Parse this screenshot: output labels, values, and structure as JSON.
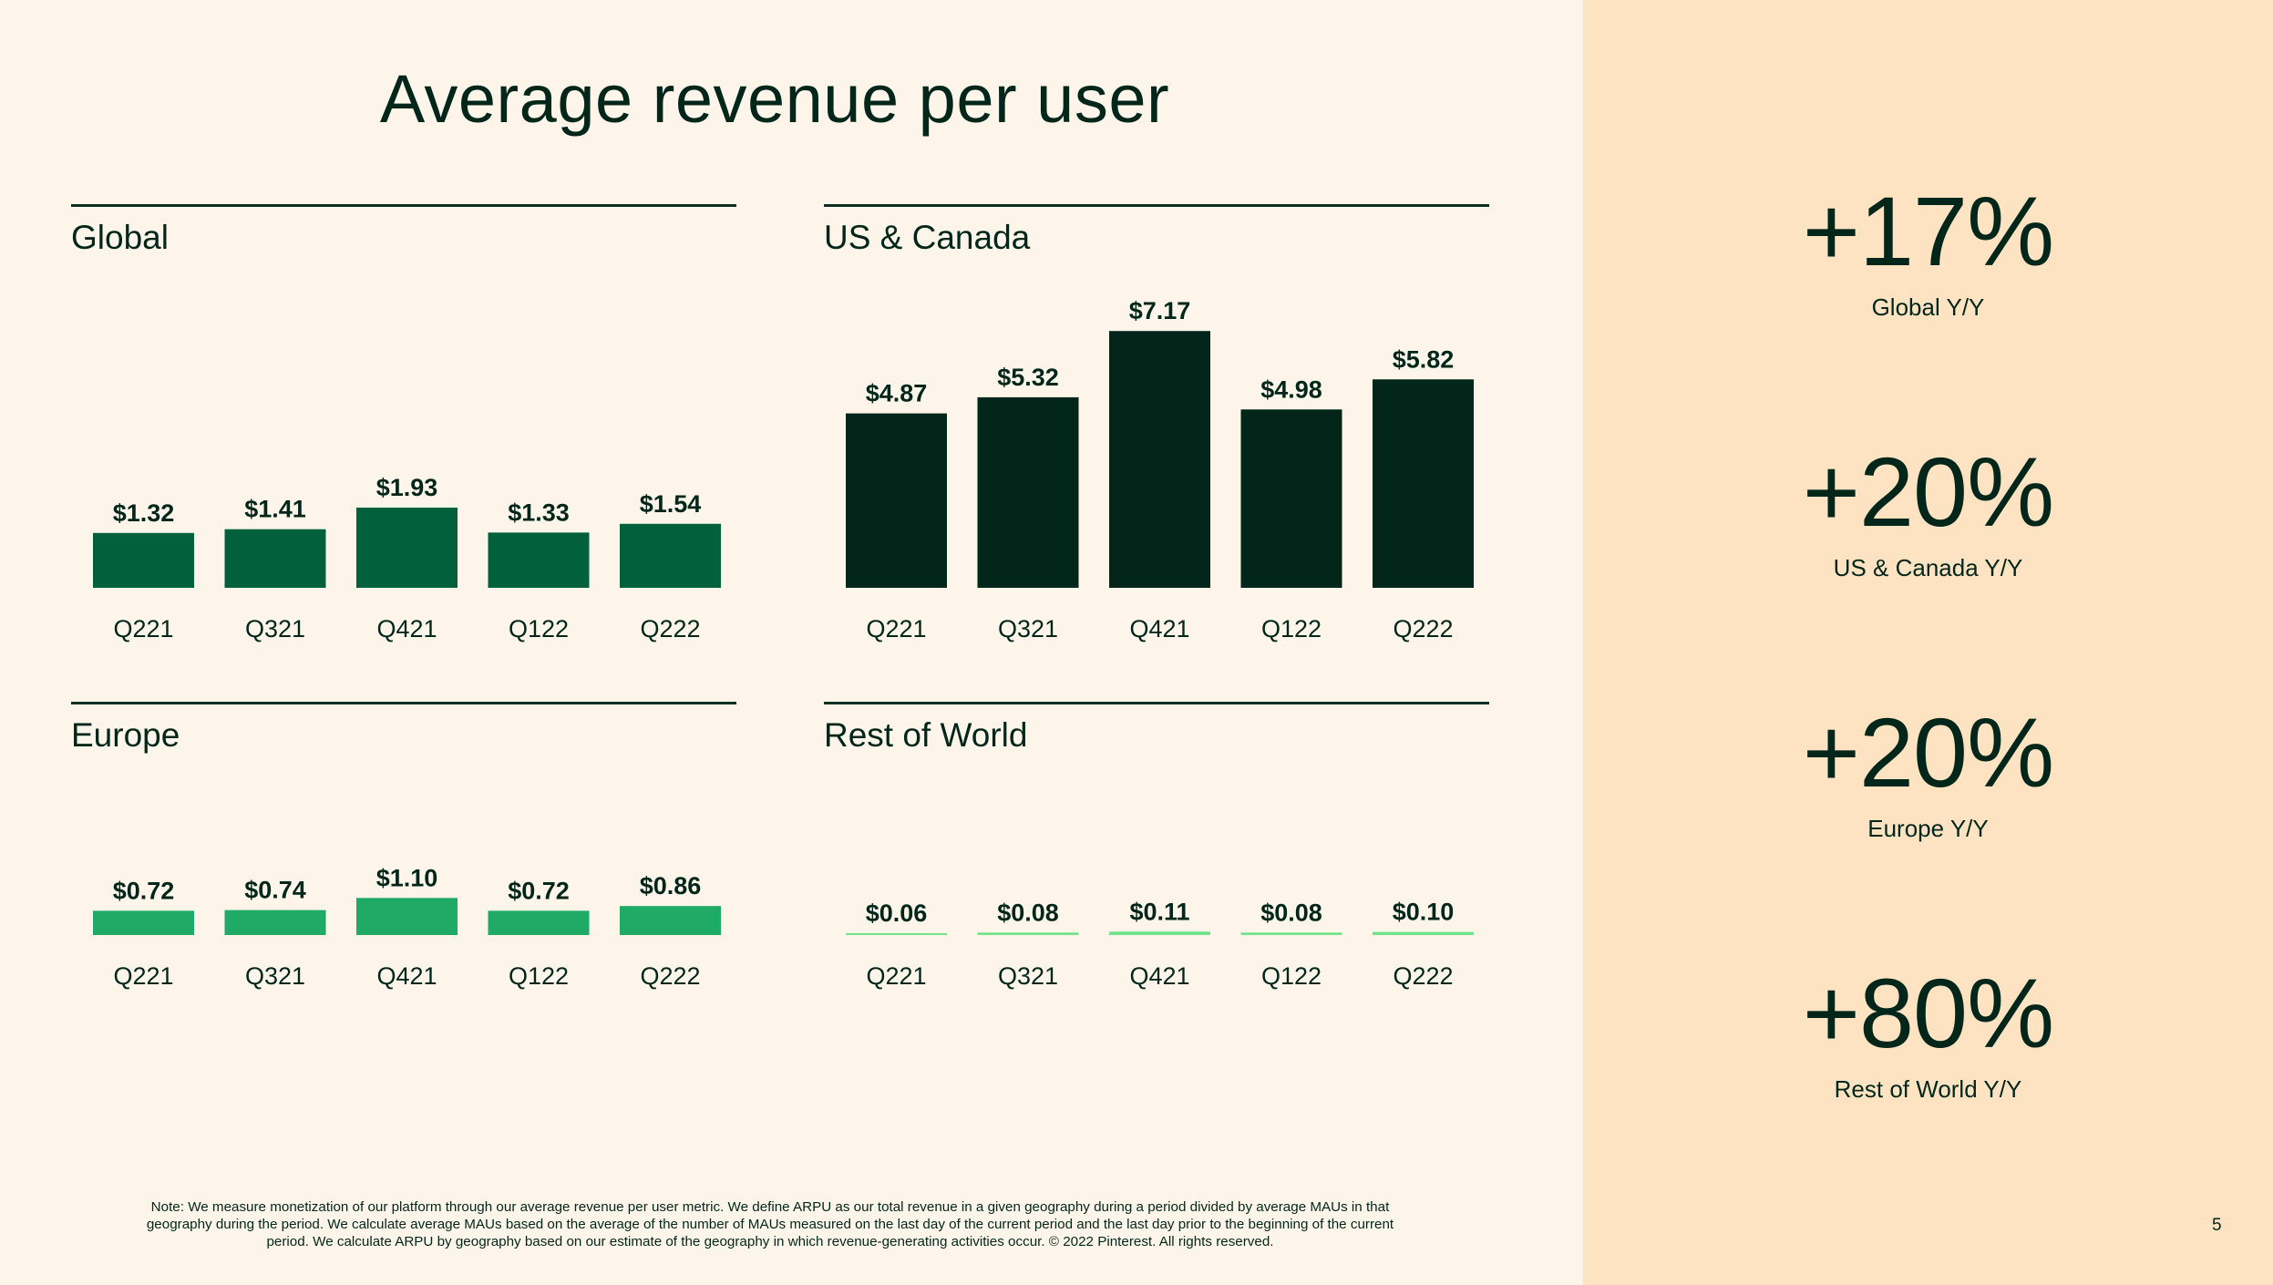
{
  "slide": {
    "title": "Average revenue per user",
    "page_number": "5",
    "footnote": "Note: We measure monetization of our platform through our average revenue per user metric. We define ARPU as our total revenue in a given geography during a period divided by average MAUs in that geography during the period. We calculate average MAUs based on the average of the number of MAUs measured on the last day of the current period and the last day prior to the beginning of the current period. We calculate ARPU by geography based on our estimate of the geography in which revenue-generating activities occur. © 2022 Pinterest. All rights reserved."
  },
  "colors": {
    "background": "#fdf5ea",
    "side_panel": "#fee3c3",
    "text": "#03261a",
    "global_bar": "#03603c",
    "us_canada_bar": "#02261a",
    "europe_bar": "#1fab66",
    "rest_of_world_bar": "#6ee58b"
  },
  "highlights": [
    {
      "value": "+17%",
      "label": "Global Y/Y"
    },
    {
      "value": "+20%",
      "label": "US & Canada Y/Y"
    },
    {
      "value": "+20%",
      "label": "Europe Y/Y"
    },
    {
      "value": "+80%",
      "label": "Rest of World Y/Y"
    }
  ],
  "chart_data": [
    {
      "type": "bar",
      "title": "Global",
      "categories": [
        "Q221",
        "Q321",
        "Q421",
        "Q122",
        "Q222"
      ],
      "values": [
        1.32,
        1.41,
        1.93,
        1.33,
        1.54
      ],
      "data_labels": [
        "$1.32",
        "$1.41",
        "$1.93",
        "$1.33",
        "$1.54"
      ],
      "color": "#03603c",
      "xlabel": "",
      "ylabel": "",
      "grid": false
    },
    {
      "type": "bar",
      "title": "US & Canada",
      "categories": [
        "Q221",
        "Q321",
        "Q421",
        "Q122",
        "Q222"
      ],
      "values": [
        4.87,
        5.32,
        7.17,
        4.98,
        5.82
      ],
      "data_labels": [
        "$4.87",
        "$5.32",
        "$7.17",
        "$4.98",
        "$5.82"
      ],
      "color": "#02261a",
      "xlabel": "",
      "ylabel": "",
      "grid": false
    },
    {
      "type": "bar",
      "title": "Europe",
      "categories": [
        "Q221",
        "Q321",
        "Q421",
        "Q122",
        "Q222"
      ],
      "values": [
        0.72,
        0.74,
        1.1,
        0.72,
        0.86
      ],
      "data_labels": [
        "$0.72",
        "$0.74",
        "$1.10",
        "$0.72",
        "$0.86"
      ],
      "color": "#1fab66",
      "xlabel": "",
      "ylabel": "",
      "grid": false
    },
    {
      "type": "bar",
      "title": "Rest of World",
      "categories": [
        "Q221",
        "Q321",
        "Q421",
        "Q122",
        "Q222"
      ],
      "values": [
        0.06,
        0.08,
        0.11,
        0.08,
        0.1
      ],
      "data_labels": [
        "$0.06",
        "$0.08",
        "$0.11",
        "$0.08",
        "$0.10"
      ],
      "color": "#6ee58b",
      "xlabel": "",
      "ylabel": "",
      "grid": false
    }
  ]
}
